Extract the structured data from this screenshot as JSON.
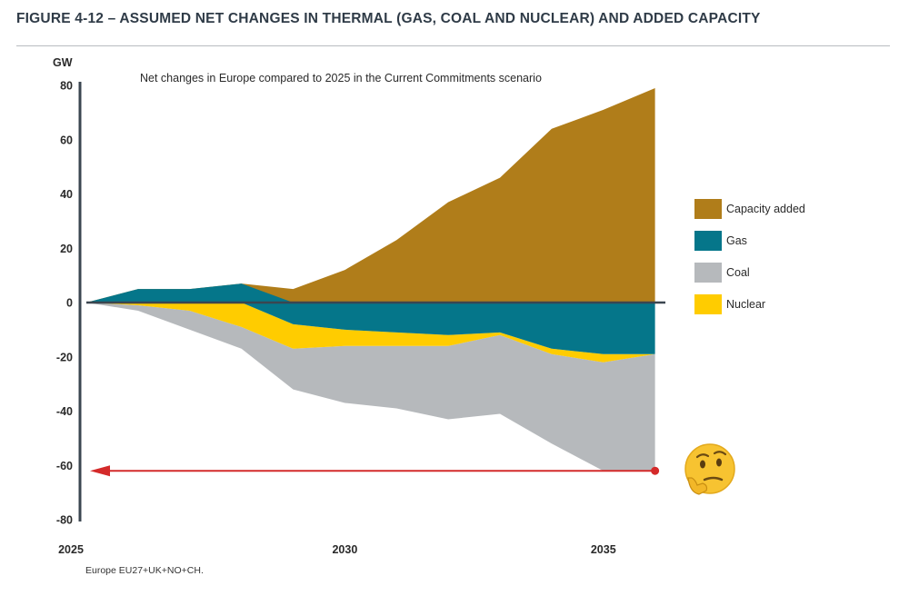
{
  "figure": {
    "title": "FIGURE 4-12 – ASSUMED NET CHANGES IN THERMAL (GAS, COAL AND NUCLEAR) AND ADDED CAPACITY",
    "footnote": "Europe EU27+UK+NO+CH."
  },
  "chart_data": {
    "type": "area",
    "title": "Net changes in Europe compared to 2025 in the Current Commitments scenario",
    "ylabel": "GW",
    "xlabel": "",
    "ylim": [
      -80,
      80
    ],
    "yticks": [
      80,
      60,
      40,
      20,
      0,
      -20,
      -40,
      -60,
      -80
    ],
    "xlim": [
      2025,
      2036.2
    ],
    "xticks": [
      {
        "value": 2025,
        "label": "2025"
      },
      {
        "value": 2030,
        "label": "2030"
      },
      {
        "value": 2035,
        "label": "2035"
      }
    ],
    "x": [
      2025,
      2026,
      2027,
      2028,
      2029,
      2030,
      2031,
      2032,
      2033,
      2034,
      2035,
      2036
    ],
    "grid": false,
    "legend_position": "right",
    "series": [
      {
        "name": "Capacity added",
        "color": "#b07d1a",
        "key": "capacity",
        "values": [
          0,
          5,
          5,
          7,
          5,
          12,
          23,
          37,
          46,
          64,
          71,
          79
        ]
      },
      {
        "name": "Gas",
        "color": "#05768a",
        "key": "gas",
        "values": [
          0,
          5,
          5,
          7,
          -8,
          -10,
          -11,
          -12,
          -11,
          -17,
          -19,
          -19
        ]
      },
      {
        "name": "Coal",
        "color": "#b6b9bc",
        "key": "coal",
        "values": [
          0,
          -3,
          -10,
          -17,
          -32,
          -37,
          -39,
          -43,
          -41,
          -52,
          -62,
          -62
        ]
      },
      {
        "name": "Nuclear",
        "color": "#ffcc00",
        "key": "nuclear",
        "values": [
          0,
          -1,
          -3,
          -9,
          -17,
          -16,
          -16,
          -16,
          -12,
          -19,
          -22,
          -19
        ]
      }
    ],
    "annotation": {
      "type": "arrow",
      "from": {
        "x": 2036,
        "y": -62
      },
      "to": {
        "x": 2025,
        "y": -62
      },
      "color": "#d42a2a"
    },
    "emoji": "🤔"
  }
}
